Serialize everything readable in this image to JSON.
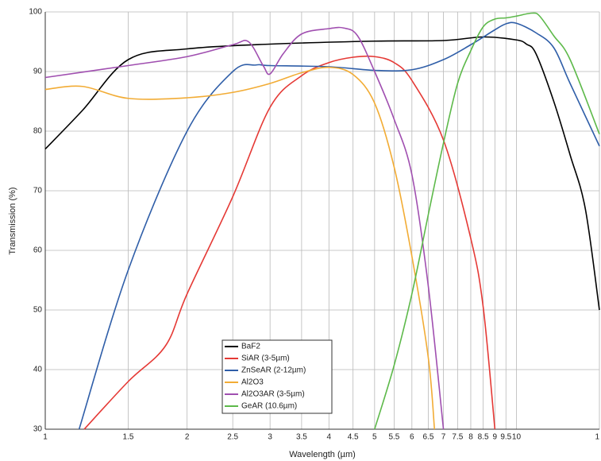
{
  "chart_data": {
    "type": "line",
    "xlabel": "Wavelength (µm)",
    "ylabel": "Transmission (%)",
    "xscale": "log",
    "grid": true,
    "xlim": [
      1,
      15
    ],
    "ylim": [
      30,
      100
    ],
    "xticks": [
      1,
      1.5,
      2,
      2.5,
      3,
      3.5,
      4,
      4.5,
      5,
      5.5,
      6,
      6.5,
      7,
      7.5,
      8,
      8.5,
      9,
      9.5,
      10,
      {
        "value": 15,
        "label": "1"
      }
    ],
    "yticks": [
      30,
      40,
      50,
      60,
      70,
      80,
      90,
      100
    ],
    "series": [
      {
        "name": "BaF2",
        "color": "#000000",
        "x": [
          1,
          1.2,
          1.5,
          2,
          3,
          5,
          7,
          8.5,
          10,
          10.5,
          11,
          12,
          13,
          14,
          15
        ],
        "values": [
          77,
          83.5,
          92,
          93.8,
          94.6,
          95.1,
          95.2,
          95.8,
          95.3,
          94.6,
          93,
          85,
          76,
          67,
          50
        ]
      },
      {
        "name": "SiAR (3-5µm)",
        "color": "#e53935",
        "x": [
          1.21,
          1.5,
          1.8,
          2,
          2.5,
          3,
          3.5,
          4,
          4.5,
          5,
          5.5,
          6,
          7,
          8,
          8.5,
          9
        ],
        "values": [
          30,
          38,
          44,
          52.7,
          69,
          84,
          89.3,
          91.5,
          92.4,
          92.5,
          91.5,
          88.5,
          78.5,
          62,
          50.5,
          30
        ]
      },
      {
        "name": "ZnSeAR (2-12µm)",
        "color": "#2f5ea8",
        "x": [
          1.18,
          1.5,
          2,
          2.5,
          2.8,
          3,
          4,
          5,
          6,
          7,
          8,
          9,
          9.5,
          10,
          11,
          12,
          13,
          15
        ],
        "values": [
          30,
          56.7,
          80,
          90,
          91.1,
          91,
          90.8,
          90.2,
          90.3,
          92,
          94.5,
          97,
          98,
          98.1,
          96.5,
          94,
          88,
          77.5
        ]
      },
      {
        "name": "Al2O3",
        "color": "#f2ac35",
        "x": [
          1,
          1.2,
          1.5,
          2,
          2.5,
          3,
          3.5,
          4,
          4.5,
          5,
          5.5,
          6,
          6.5,
          6.7
        ],
        "values": [
          87,
          87.5,
          85.5,
          85.6,
          86.5,
          88,
          89.8,
          90.7,
          89.5,
          84.7,
          74,
          59,
          42,
          30
        ]
      },
      {
        "name": "Al2O3AR (3-5µm)",
        "color": "#a04fb0",
        "x": [
          1,
          1.5,
          2,
          2.5,
          2.7,
          2.9,
          3,
          3.2,
          3.5,
          4,
          4.3,
          4.6,
          5,
          5.5,
          6,
          6.5,
          7
        ],
        "values": [
          89,
          91,
          92.5,
          94.5,
          95,
          91,
          89.6,
          93,
          96.3,
          97.2,
          97.3,
          96,
          90,
          82,
          72.7,
          54,
          30
        ]
      },
      {
        "name": "GeAR (10.6µm)",
        "color": "#5db94a",
        "x": [
          5,
          5.5,
          6,
          6.5,
          7,
          7.5,
          8,
          8.5,
          9,
          9.5,
          10,
          10.8,
          11.2,
          12,
          13,
          15
        ],
        "values": [
          30,
          40.7,
          52.7,
          66,
          78,
          88,
          93.5,
          97.5,
          98.8,
          99,
          99.3,
          99.8,
          99.3,
          96,
          92,
          79.5
        ]
      }
    ]
  }
}
